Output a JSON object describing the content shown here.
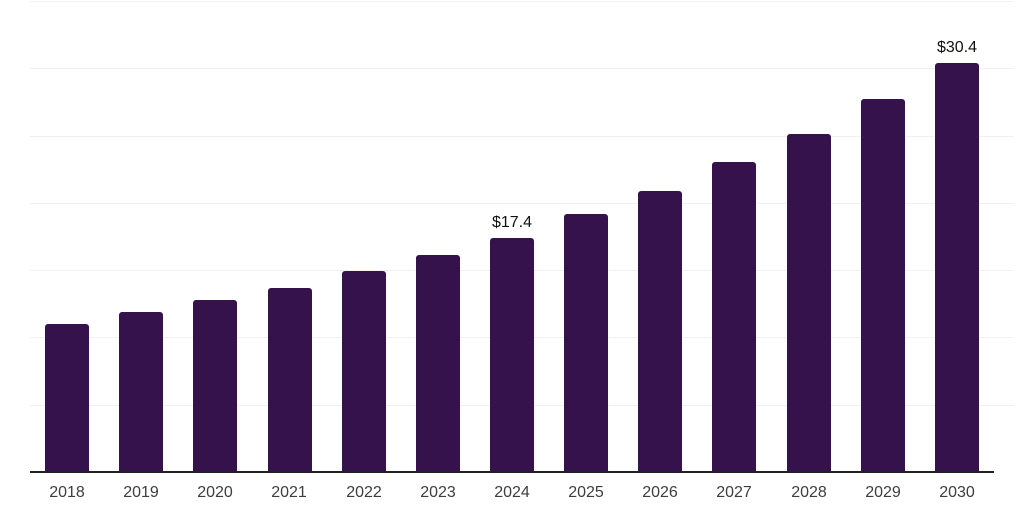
{
  "chart_data": {
    "type": "bar",
    "title": "",
    "xlabel": "",
    "ylabel": "",
    "categories": [
      "2018",
      "2019",
      "2020",
      "2021",
      "2022",
      "2023",
      "2024",
      "2025",
      "2026",
      "2027",
      "2028",
      "2029",
      "2030"
    ],
    "values": [
      11.0,
      11.9,
      12.8,
      13.7,
      14.9,
      16.1,
      17.4,
      19.2,
      20.9,
      23.0,
      25.1,
      27.7,
      30.4
    ],
    "data_labels": [
      "",
      "",
      "",
      "",
      "",
      "",
      "$17.4",
      "",
      "",
      "",
      "",
      "",
      "$30.4"
    ],
    "ylim": [
      0,
      35
    ],
    "grid_step": 5,
    "gridlines": "horizontal",
    "legend": "none",
    "y_tick_labels_visible": false,
    "colors": {
      "bar": "#35124B",
      "gridline": "#F0F0F0",
      "axis_line": "#222222",
      "data_label_text": "#111111",
      "tick_label_text": "#3D3D3D",
      "background": "#FFFFFF"
    }
  }
}
